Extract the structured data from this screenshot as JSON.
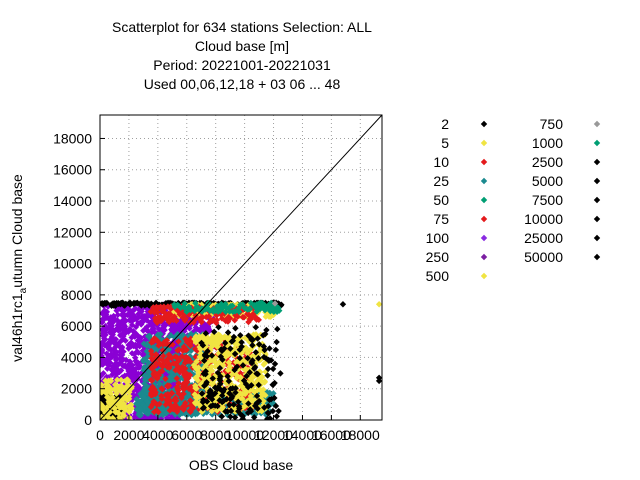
{
  "header": {
    "line1": "Scatterplot for  634 stations Selection: ALL",
    "line2": "Cloud base [m]",
    "line3": "Period: 20221001-20221031",
    "line4": "Used  00,06,12,18  + 03 06 ... 48"
  },
  "chart_data": {
    "type": "scatter",
    "xlabel": "OBS Cloud base",
    "ylabel_main": "val46h1rc1",
    "ylabel_sub": "a",
    "ylabel_rest": "utumn Cloud base",
    "xlim": [
      0,
      19500
    ],
    "ylim": [
      0,
      19500
    ],
    "xticks": [
      0,
      2000,
      4000,
      6000,
      8000,
      10000,
      12000,
      14000,
      16000,
      18000
    ],
    "yticks": [
      0,
      2000,
      4000,
      6000,
      8000,
      10000,
      12000,
      14000,
      16000,
      18000
    ],
    "xtick_labels": [
      "0",
      "2000",
      "4000",
      "6000",
      "8000",
      "10000",
      "12000",
      "14000",
      "16000",
      "18000"
    ],
    "ytick_labels": [
      "0",
      "2000",
      "4000",
      "6000",
      "8000",
      "10000",
      "12000",
      "14000",
      "16000",
      "18000"
    ],
    "grid": true,
    "diagonal": true,
    "legend_position": "right",
    "legend": [
      {
        "label": "2",
        "color": "#000000"
      },
      {
        "label": "5",
        "color": "#f0e442"
      },
      {
        "label": "10",
        "color": "#e41a1c"
      },
      {
        "label": "25",
        "color": "#1b8a8f"
      },
      {
        "label": "50",
        "color": "#009e73"
      },
      {
        "label": "75",
        "color": "#e41a1c"
      },
      {
        "label": "100",
        "color": "#8a2be2"
      },
      {
        "label": "250",
        "color": "#7b1fa2"
      },
      {
        "label": "500",
        "color": "#f0e442"
      },
      {
        "label": "750",
        "color": "#999999"
      },
      {
        "label": "1000",
        "color": "#009e73"
      },
      {
        "label": "2500",
        "color": "#000000"
      },
      {
        "label": "5000",
        "color": "#000000"
      },
      {
        "label": "7500",
        "color": "#000000"
      },
      {
        "label": "10000",
        "color": "#000000"
      },
      {
        "label": "25000",
        "color": "#000000"
      },
      {
        "label": "50000",
        "color": "#000000"
      }
    ],
    "clusters": [
      {
        "name": "purple-block",
        "color": "#8a00d4",
        "x": [
          0,
          5500
        ],
        "y": [
          0,
          7400
        ],
        "count": 900
      },
      {
        "name": "purple-block-2",
        "color": "#8a00d4",
        "x": [
          5000,
          8000
        ],
        "y": [
          4500,
          7400
        ],
        "count": 180
      },
      {
        "name": "top-band-black",
        "color": "#000000",
        "x": [
          0,
          12600
        ],
        "y": [
          7300,
          7500
        ],
        "count": 260
      },
      {
        "name": "top-band-yellow",
        "color": "#f0e442",
        "x": [
          5000,
          12000
        ],
        "y": [
          6600,
          7400
        ],
        "count": 160
      },
      {
        "name": "top-band-red",
        "color": "#e41a1c",
        "x": [
          3500,
          11000
        ],
        "y": [
          6200,
          7300
        ],
        "count": 140
      },
      {
        "name": "teal-diagonal",
        "color": "#1b8a8f",
        "x": [
          3000,
          7500
        ],
        "y": [
          500,
          5500
        ],
        "count": 420
      },
      {
        "name": "teal-bottom-band",
        "color": "#1b8a8f",
        "x": [
          2500,
          12000
        ],
        "y": [
          300,
          1800
        ],
        "count": 380
      },
      {
        "name": "red-mid",
        "color": "#e41a1c",
        "x": [
          3500,
          10500
        ],
        "y": [
          500,
          5200
        ],
        "count": 420
      },
      {
        "name": "yellow-right",
        "color": "#f0e442",
        "x": [
          6500,
          11500
        ],
        "y": [
          500,
          5500
        ],
        "count": 420
      },
      {
        "name": "black-right",
        "color": "#000000",
        "x": [
          7000,
          12500
        ],
        "y": [
          0,
          6000
        ],
        "count": 170
      },
      {
        "name": "green-band",
        "color": "#009e73",
        "x": [
          5000,
          12500
        ],
        "y": [
          6900,
          7500
        ],
        "count": 100
      },
      {
        "name": "black-corner",
        "color": "#000000",
        "x": [
          0,
          1600
        ],
        "y": [
          0,
          1600
        ],
        "count": 220
      },
      {
        "name": "yellow-corner",
        "color": "#f0e442",
        "x": [
          0,
          2200
        ],
        "y": [
          0,
          2600
        ],
        "count": 120
      }
    ],
    "points": [
      {
        "x": 16800,
        "y": 7400,
        "color": "#000000"
      },
      {
        "x": 19300,
        "y": 7400,
        "color": "#f0e442"
      },
      {
        "x": 19300,
        "y": 2500,
        "color": "#000000"
      },
      {
        "x": 19300,
        "y": 2700,
        "color": "#000000"
      },
      {
        "x": 12100,
        "y": 7450,
        "color": "#999999"
      }
    ]
  }
}
